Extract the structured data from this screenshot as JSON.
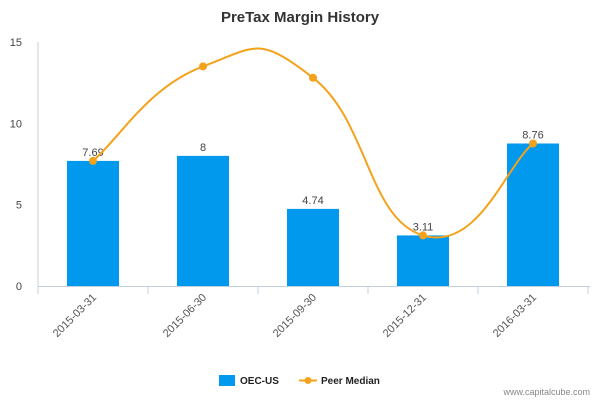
{
  "chart_data": {
    "type": "bar",
    "title": "PreTax Margin History",
    "categories": [
      "2015-03-31",
      "2015-06-30",
      "2015-09-30",
      "2015-12-31",
      "2016-03-31"
    ],
    "ylim": [
      0,
      15
    ],
    "yticks": [
      "0",
      "5",
      "10",
      "15"
    ],
    "grid": false,
    "legend_position": "bottom",
    "series": [
      {
        "name": "OEC-US",
        "type": "bar",
        "color": "#0099ee",
        "values": [
          7.69,
          8,
          4.74,
          3.11,
          8.76
        ],
        "labels": [
          "7.69",
          "8",
          "4.74",
          "3.11",
          "8.76"
        ]
      },
      {
        "name": "Peer Median",
        "type": "line",
        "color": "#f5a21b",
        "values": [
          7.69,
          13.5,
          12.8,
          3.11,
          8.76
        ]
      }
    ]
  },
  "watermark": "www.capitalcube.com"
}
